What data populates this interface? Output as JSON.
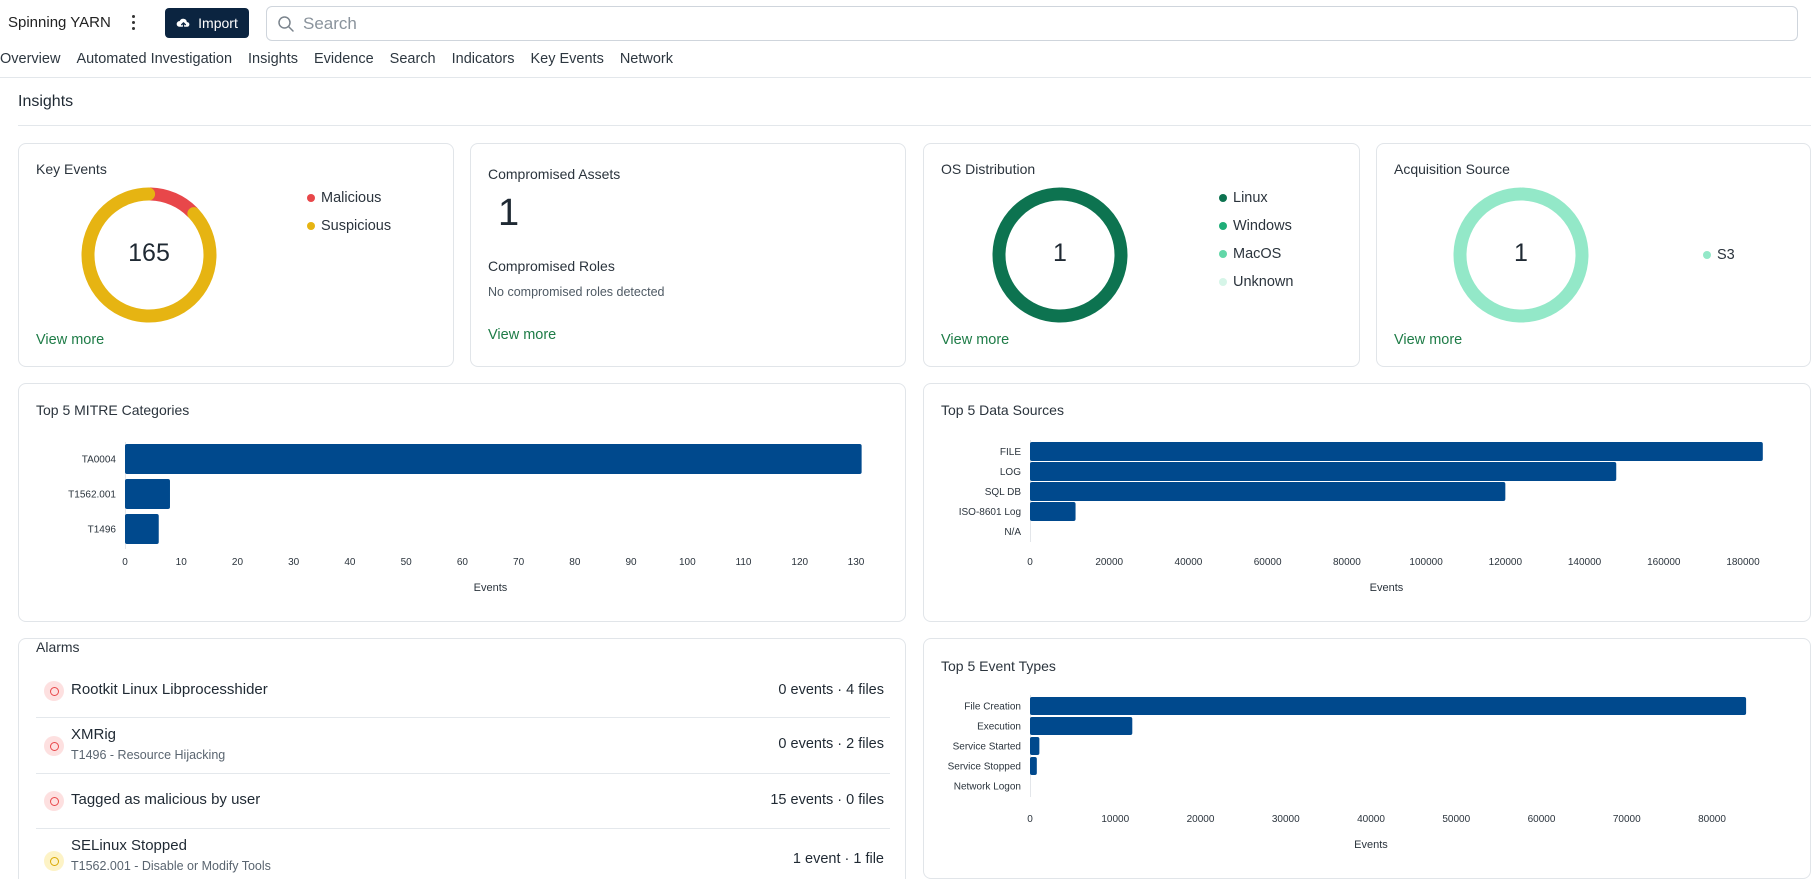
{
  "app": {
    "title": "Spinning YARN",
    "import_label": "Import",
    "search_placeholder": "Search"
  },
  "tabs": [
    "Overview",
    "Automated Investigation",
    "Insights",
    "Evidence",
    "Search",
    "Indicators",
    "Key Events",
    "Network"
  ],
  "page": {
    "title": "Insights"
  },
  "key_events": {
    "title": "Key Events",
    "total": "165",
    "legend": [
      {
        "label": "Malicious",
        "color": "#e8474a"
      },
      {
        "label": "Suspicious",
        "color": "#e6b412"
      }
    ],
    "view_more": "View more"
  },
  "compromised": {
    "assets_title": "Compromised Assets",
    "assets_count": "1",
    "roles_title": "Compromised Roles",
    "roles_text": "No compromised roles detected",
    "view_more": "View more"
  },
  "os_distribution": {
    "title": "OS Distribution",
    "total": "1",
    "legend": [
      {
        "label": "Linux",
        "color": "#0d7350"
      },
      {
        "label": "Windows",
        "color": "#1fae78"
      },
      {
        "label": "MacOS",
        "color": "#62d7a8"
      },
      {
        "label": "Unknown",
        "color": "#d6f5e8"
      }
    ],
    "view_more": "View more"
  },
  "acquisition_source": {
    "title": "Acquisition Source",
    "total": "1",
    "legend": [
      {
        "label": "S3",
        "color": "#93e8c8"
      }
    ],
    "view_more": "View more"
  },
  "alarms": {
    "title": "Alarms",
    "items": [
      {
        "name": "Rootkit Linux Libprocesshider",
        "sub": "",
        "stats": "0 events · 4 files",
        "severity": "malicious"
      },
      {
        "name": "XMRig",
        "sub": "T1496 - Resource Hijacking",
        "stats": "0 events · 2 files",
        "severity": "malicious"
      },
      {
        "name": "Tagged as malicious by user",
        "sub": "",
        "stats": "15 events · 0 files",
        "severity": "malicious"
      },
      {
        "name": "SELinux Stopped",
        "sub": "T1562.001 - Disable or Modify Tools",
        "stats": "1 event · 1 file",
        "severity": "suspicious"
      }
    ]
  },
  "colors": {
    "bar": "#00498d",
    "accent_green": "#1e7c47",
    "malicious": "#e8474a",
    "suspicious": "#e6b412"
  },
  "chart_data": [
    {
      "type": "donut",
      "title": "Key Events",
      "center_label": "165",
      "series": [
        {
          "name": "Malicious",
          "value": 21
        },
        {
          "name": "Suspicious",
          "value": 144
        }
      ]
    },
    {
      "type": "donut",
      "title": "OS Distribution",
      "center_label": "1",
      "series": [
        {
          "name": "Linux",
          "value": 1
        },
        {
          "name": "Windows",
          "value": 0
        },
        {
          "name": "MacOS",
          "value": 0
        },
        {
          "name": "Unknown",
          "value": 0
        }
      ]
    },
    {
      "type": "donut",
      "title": "Acquisition Source",
      "center_label": "1",
      "series": [
        {
          "name": "S3",
          "value": 1
        }
      ]
    },
    {
      "type": "bar",
      "orientation": "horizontal",
      "title": "Top 5 MITRE Categories",
      "categories": [
        "TA0004",
        "T1562.001",
        "T1496"
      ],
      "values": [
        131,
        8,
        6
      ],
      "xlabel": "Events",
      "xlim": [
        0,
        130
      ],
      "xticks": [
        0,
        10,
        20,
        30,
        40,
        50,
        60,
        70,
        80,
        90,
        100,
        110,
        120,
        130
      ]
    },
    {
      "type": "bar",
      "orientation": "horizontal",
      "title": "Top 5 Data Sources",
      "categories": [
        "FILE",
        "LOG",
        "SQL DB",
        "ISO-8601 Log",
        "N/A"
      ],
      "values": [
        185000,
        148000,
        120000,
        11500,
        0
      ],
      "xlabel": "Events",
      "xlim": [
        0,
        180000
      ],
      "xticks": [
        0,
        20000,
        40000,
        60000,
        80000,
        100000,
        120000,
        140000,
        160000,
        180000
      ]
    },
    {
      "type": "bar",
      "orientation": "horizontal",
      "title": "Top 5 Event Types",
      "categories": [
        "File Creation",
        "Execution",
        "Service Started",
        "Service Stopped",
        "Network Logon"
      ],
      "values": [
        84000,
        12000,
        1100,
        800,
        0
      ],
      "xlabel": "Events",
      "xlim": [
        0,
        80000
      ],
      "xticks": [
        0,
        10000,
        20000,
        30000,
        40000,
        50000,
        60000,
        70000,
        80000
      ]
    }
  ]
}
